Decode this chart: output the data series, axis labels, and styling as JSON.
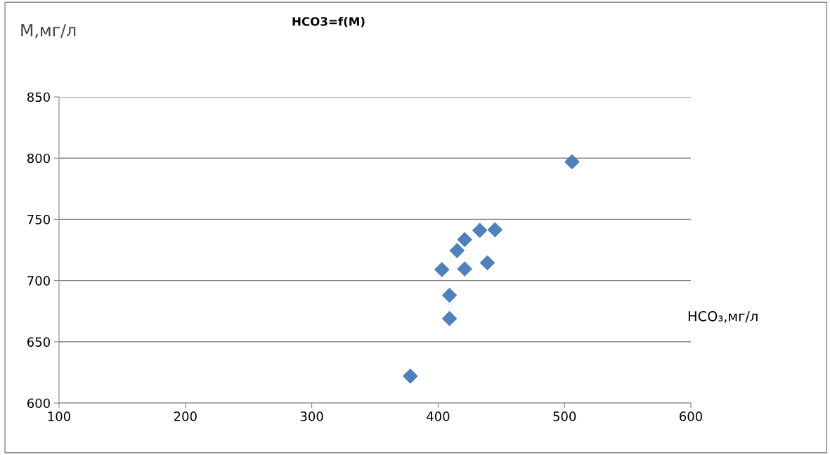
{
  "chart_data": {
    "type": "scatter",
    "title": "HCO3=f(M)",
    "xlabel": "HCO₃,мг/л",
    "ylabel": "М,мг/л",
    "x": [
      378,
      403,
      409,
      409,
      415,
      421,
      421,
      433,
      439,
      445,
      506
    ],
    "series": [
      {
        "color": "#4f81bd",
        "values": [
          622,
          709,
          688,
          669,
          724.5,
          733.5,
          709.5,
          741,
          714.5,
          741.5,
          797
        ]
      }
    ],
    "xlim": [
      100,
      600
    ],
    "xticks": [
      100,
      200,
      300,
      400,
      500,
      600
    ],
    "ylim": [
      600,
      850
    ],
    "yticks": [
      600,
      650,
      700,
      750,
      800,
      850
    ],
    "grid": "y",
    "marker": "diamond",
    "legend": false
  }
}
